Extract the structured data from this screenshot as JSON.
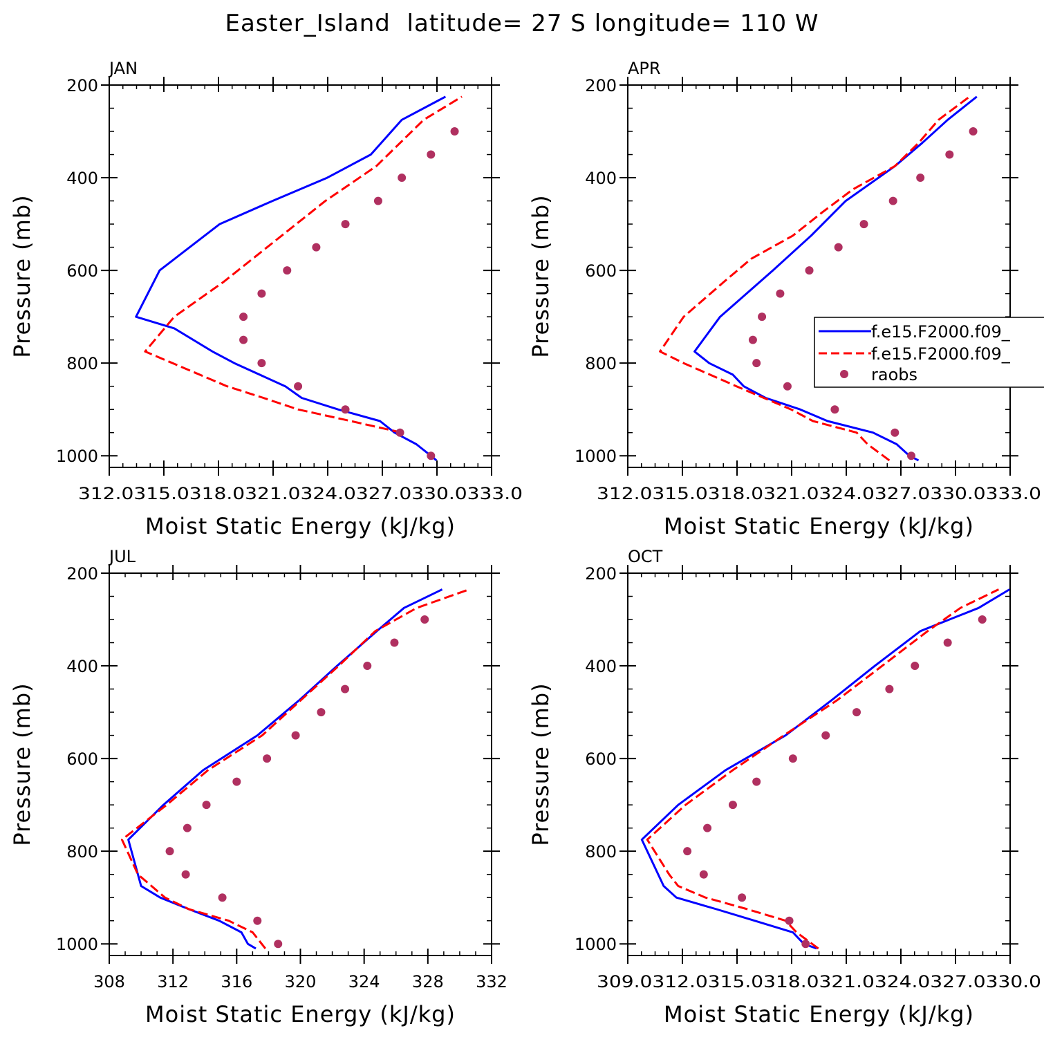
{
  "figure": {
    "title": "Easter_Island  latitude= 27 S longitude= 110 W"
  },
  "colors": {
    "model_1": "#0000ff",
    "model_2": "#ff0000",
    "raobs": "#b03060"
  },
  "legend": {
    "entries": [
      "f.e15.F2000.f09_",
      "f.e15.F2000.f09_",
      "raobs"
    ],
    "panel": "APR",
    "placement": "right, clipped by figure edge"
  },
  "chart_data": [
    {
      "type": "line",
      "panel_label": "JAN",
      "xlabel": "Moist Static Energy (kJ/kg)",
      "ylabel": "Pressure (mb)",
      "xlim": [
        312.03,
        333.03
      ],
      "x_ticks": [
        312.03,
        315.03,
        318.03,
        321.03,
        324.03,
        327.03,
        330.03,
        333.03
      ],
      "x_tick_labels": [
        "312.0315.0318.0321.0324.0327.0330.0333.0"
      ],
      "ylim": [
        1025,
        200
      ],
      "y_ticks": [
        200,
        400,
        600,
        800,
        1000
      ],
      "y_tick_labels": [
        "200",
        "400",
        "600",
        "800",
        "1000"
      ],
      "series": [
        {
          "style": "solid",
          "color": "#0000ff",
          "x": [
            330.0,
            329.7,
            328.9,
            327.7,
            326.9,
            324.6,
            322.6,
            321.7,
            318.9,
            317.7,
            315.6,
            313.5,
            314.8,
            318.1,
            321.0,
            324.0,
            326.4,
            328.1,
            330.5
          ],
          "p": [
            1010,
            1000,
            975,
            950,
            925,
            900,
            875,
            850,
            800,
            775,
            725,
            700,
            600,
            500,
            450,
            400,
            350,
            275,
            225
          ]
        },
        {
          "style": "dashed",
          "color": "#ff0000",
          "x": [
            328.1,
            325.3,
            322.4,
            320.5,
            318.5,
            314.0,
            315.6,
            318.3,
            323.9,
            326.7,
            329.3,
            331.4
          ],
          "p": [
            950,
            925,
            900,
            875,
            850,
            775,
            700,
            625,
            450,
            375,
            275,
            225
          ]
        }
      ],
      "points": {
        "name": "raobs",
        "color": "#b03060",
        "x": [
          331.0,
          329.7,
          328.1,
          326.8,
          325.0,
          323.4,
          321.8,
          320.4,
          319.4,
          319.4,
          320.4,
          322.4,
          325.0,
          328.0,
          329.7
        ],
        "p": [
          300,
          350,
          400,
          450,
          500,
          550,
          600,
          650,
          700,
          750,
          800,
          850,
          900,
          950,
          1000
        ]
      }
    },
    {
      "type": "line",
      "panel_label": "APR",
      "xlabel": "Moist Static Energy (kJ/kg)",
      "ylabel": "Pressure (mb)",
      "xlim": [
        312.03,
        333.03
      ],
      "x_ticks": [
        312.03,
        315.03,
        318.03,
        321.03,
        324.03,
        327.03,
        330.03,
        333.03
      ],
      "x_tick_labels": [
        "312.0315.0318.0321.0324.0327.0330.0333.0"
      ],
      "ylim": [
        1025,
        200
      ],
      "y_ticks": [
        200,
        400,
        600,
        800,
        1000
      ],
      "y_tick_labels": [
        "200",
        "400",
        "600",
        "800",
        "1000"
      ],
      "series": [
        {
          "style": "solid",
          "color": "#0000ff",
          "x": [
            328.0,
            327.5,
            326.8,
            325.5,
            323.0,
            321.5,
            319.6,
            318.4,
            317.8,
            316.5,
            315.7,
            317.1,
            320.0,
            322.1,
            324.0,
            326.7,
            328.2,
            329.6,
            331.2
          ],
          "p": [
            1010,
            1000,
            975,
            950,
            925,
            900,
            875,
            850,
            825,
            800,
            775,
            700,
            600,
            525,
            450,
            375,
            325,
            275,
            225
          ]
        },
        {
          "style": "dashed",
          "color": "#ff0000",
          "x": [
            326.4,
            325.2,
            324.6,
            322.2,
            321.0,
            319.5,
            318.0,
            315.1,
            313.8,
            315.1,
            317.3,
            318.8,
            321.1,
            322.7,
            324.4,
            326.7,
            328.0,
            329.1,
            330.8
          ],
          "p": [
            1010,
            975,
            950,
            925,
            900,
            875,
            850,
            800,
            775,
            700,
            625,
            575,
            525,
            475,
            425,
            375,
            325,
            275,
            225
          ]
        }
      ],
      "points": {
        "name": "raobs",
        "color": "#b03060",
        "x": [
          331.0,
          329.7,
          328.1,
          326.6,
          325.0,
          323.6,
          322.0,
          320.4,
          319.4,
          318.9,
          319.1,
          320.8,
          323.4,
          326.7,
          327.6
        ],
        "p": [
          300,
          350,
          400,
          450,
          500,
          550,
          600,
          650,
          700,
          750,
          800,
          850,
          900,
          950,
          1000
        ]
      }
    },
    {
      "type": "line",
      "panel_label": "JUL",
      "xlabel": "Moist Static Energy (kJ/kg)",
      "ylabel": "Pressure (mb)",
      "xlim": [
        308,
        332
      ],
      "x_ticks": [
        308,
        312,
        316,
        320,
        324,
        328,
        332
      ],
      "x_tick_labels": [
        "308",
        "312",
        "316",
        "320",
        "324",
        "328",
        "332"
      ],
      "ylim": [
        1025,
        200
      ],
      "y_ticks": [
        200,
        400,
        600,
        800,
        1000
      ],
      "y_tick_labels": [
        "200",
        "400",
        "600",
        "800",
        "1000"
      ],
      "series": [
        {
          "style": "solid",
          "color": "#0000ff",
          "x": [
            317.2,
            316.7,
            316.3,
            314.9,
            313.0,
            311.2,
            310.0,
            309.2,
            311.4,
            313.9,
            317.3,
            319.9,
            322.3,
            324.8,
            326.5,
            328.9
          ],
          "p": [
            1010,
            1000,
            975,
            950,
            925,
            900,
            875,
            775,
            700,
            625,
            550,
            475,
            400,
            325,
            275,
            235
          ]
        },
        {
          "style": "dashed",
          "color": "#ff0000",
          "x": [
            317.8,
            317.0,
            315.5,
            313.0,
            311.5,
            309.8,
            308.8,
            311.6,
            314.2,
            317.6,
            320.0,
            322.4,
            324.7,
            327.3,
            330.6
          ],
          "p": [
            1010,
            975,
            950,
            925,
            900,
            850,
            775,
            700,
            625,
            550,
            475,
            400,
            325,
            275,
            235
          ]
        }
      ],
      "points": {
        "name": "raobs",
        "color": "#b03060",
        "x": [
          327.8,
          325.9,
          324.2,
          322.8,
          321.3,
          319.7,
          317.9,
          316.0,
          314.1,
          312.9,
          311.8,
          312.8,
          315.1,
          317.3,
          318.6
        ],
        "p": [
          300,
          350,
          400,
          450,
          500,
          550,
          600,
          650,
          700,
          750,
          800,
          850,
          900,
          950,
          1000
        ]
      }
    },
    {
      "type": "line",
      "panel_label": "OCT",
      "xlabel": "Moist Static Energy (kJ/kg)",
      "ylabel": "Pressure (mb)",
      "xlim": [
        309.03,
        330.03
      ],
      "x_ticks": [
        309.03,
        312.03,
        315.03,
        318.03,
        321.03,
        324.03,
        327.03,
        330.03
      ],
      "x_tick_labels": [
        "309.0312.0315.0318.0321.0324.0327.0330.0"
      ],
      "ylim": [
        1025,
        200
      ],
      "y_ticks": [
        200,
        400,
        600,
        800,
        1000
      ],
      "y_tick_labels": [
        "200",
        "400",
        "600",
        "800",
        "1000"
      ],
      "series": [
        {
          "style": "solid",
          "color": "#0000ff",
          "x": [
            319.4,
            318.7,
            318.1,
            316.0,
            313.9,
            311.7,
            311.0,
            309.8,
            311.8,
            314.4,
            317.7,
            320.2,
            322.6,
            325.1,
            326.7,
            328.3,
            330.0
          ],
          "p": [
            1010,
            1000,
            975,
            950,
            925,
            900,
            875,
            775,
            700,
            625,
            550,
            475,
            400,
            325,
            300,
            275,
            235
          ]
        },
        {
          "style": "dashed",
          "color": "#ff0000",
          "x": [
            319.5,
            318.3,
            317.7,
            315.6,
            313.3,
            311.8,
            311.3,
            310.1,
            312.2,
            314.8,
            317.6,
            320.5,
            323.0,
            325.5,
            327.3,
            329.4
          ],
          "p": [
            1010,
            975,
            950,
            925,
            900,
            875,
            850,
            775,
            700,
            625,
            550,
            475,
            400,
            325,
            275,
            235
          ]
        }
      ],
      "points": {
        "name": "raobs",
        "color": "#b03060",
        "x": [
          328.5,
          326.6,
          324.8,
          323.4,
          321.6,
          319.9,
          318.1,
          316.1,
          314.8,
          313.4,
          312.3,
          313.2,
          315.3,
          317.9,
          318.8
        ],
        "p": [
          300,
          350,
          400,
          450,
          500,
          550,
          600,
          650,
          700,
          750,
          800,
          850,
          900,
          950,
          1000
        ]
      }
    }
  ]
}
